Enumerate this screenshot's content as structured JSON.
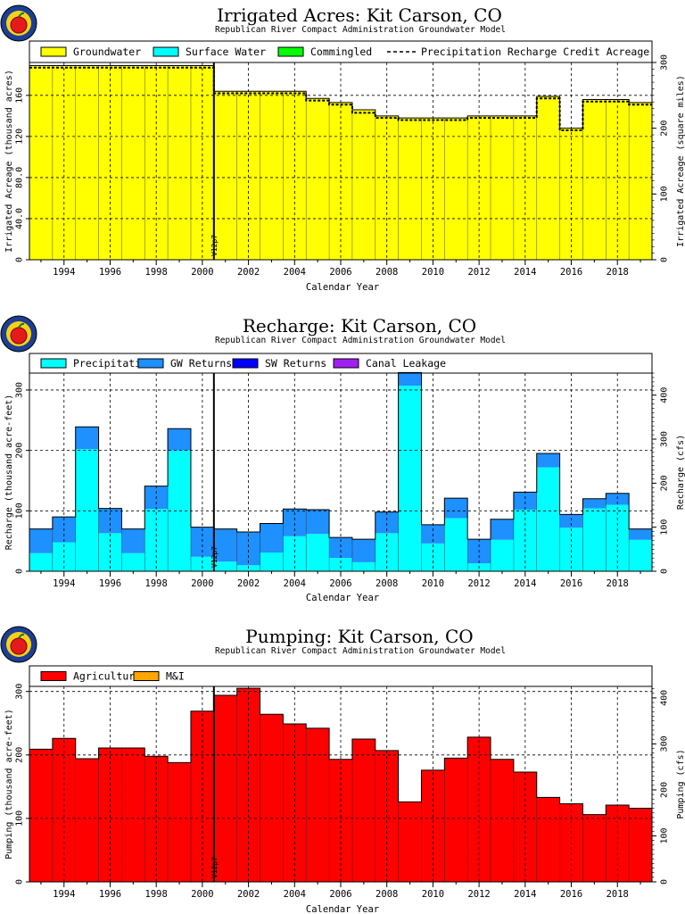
{
  "chart_data": [
    {
      "type": "bar",
      "title": "Irrigated Acres: Kit Carson, CO",
      "subtitle": "Republican River Compact Administration Groundwater Model",
      "xlabel": "Calendar Year",
      "ylabel": "Irrigated Acreage (thousand acres)",
      "y2label": "Irrigated Acreage (square miles)",
      "xlim": [
        1992.5,
        2019.5
      ],
      "ylim": [
        0,
        192
      ],
      "y2lim": [
        0,
        300
      ],
      "yticks": [
        0,
        40,
        80,
        120,
        160
      ],
      "ytick_labels": [
        "0",
        "40.0",
        "80.0",
        "120",
        "160"
      ],
      "y2ticks": [
        0,
        100,
        200,
        300
      ],
      "xticks": [
        1994,
        1996,
        1998,
        2000,
        2002,
        2004,
        2006,
        2008,
        2010,
        2012,
        2014,
        2016,
        2018
      ],
      "grid": true,
      "legend": "top",
      "marker_year": 2000.5,
      "marker_label": "V12p7",
      "x": [
        1993,
        1994,
        1995,
        1996,
        1997,
        1998,
        1999,
        2000,
        2001,
        2002,
        2003,
        2004,
        2005,
        2006,
        2007,
        2008,
        2009,
        2010,
        2011,
        2012,
        2013,
        2014,
        2015,
        2016,
        2017,
        2018,
        2019
      ],
      "series": [
        {
          "name": "Groundwater",
          "color": "#ffff00",
          "kind": "bar",
          "values": [
            189,
            189,
            189,
            189,
            189,
            189,
            189,
            189,
            164,
            164,
            164,
            164,
            157,
            153,
            146,
            140,
            138,
            138,
            138,
            140,
            140,
            140,
            159,
            128,
            156,
            156,
            153
          ]
        },
        {
          "name": "Surface Water",
          "color": "#00ffff",
          "kind": "bar",
          "values": [
            0,
            0,
            0,
            0,
            0,
            0,
            0,
            0,
            0,
            0,
            0,
            0,
            0,
            0,
            0,
            0,
            0,
            0,
            0,
            0,
            0,
            0,
            0,
            0,
            0,
            0,
            0
          ]
        },
        {
          "name": "Commingled",
          "color": "#00ff00",
          "kind": "bar",
          "values": [
            0,
            0,
            0,
            0,
            0,
            0,
            0,
            0,
            0,
            0,
            0,
            0,
            0,
            0,
            0,
            0,
            0,
            0,
            0,
            0,
            0,
            0,
            0,
            0,
            0,
            0,
            0
          ]
        },
        {
          "name": "Precipitation Recharge Credit Acreage",
          "color": "#000000",
          "kind": "dashed",
          "values": [
            187,
            187,
            187,
            187,
            187,
            187,
            187,
            187,
            162,
            162,
            162,
            162,
            155,
            151,
            143,
            138,
            136,
            136,
            136,
            138,
            138,
            138,
            157,
            126,
            154,
            154,
            151
          ]
        }
      ]
    },
    {
      "type": "bar",
      "title": "Recharge: Kit Carson, CO",
      "subtitle": "Republican River Compact Administration Groundwater Model",
      "xlabel": "Calendar Year",
      "ylabel": "Recharge (thousand acre-feet)",
      "y2label": "Recharge (cfs)",
      "xlim": [
        1992.5,
        2019.5
      ],
      "ylim": [
        0,
        328
      ],
      "y2lim": [
        0,
        450
      ],
      "yticks": [
        0,
        100,
        200,
        300
      ],
      "ytick_labels": [
        "0",
        "100",
        "200",
        "300"
      ],
      "y2ticks": [
        0,
        100,
        200,
        300,
        400
      ],
      "xticks": [
        1994,
        1996,
        1998,
        2000,
        2002,
        2004,
        2006,
        2008,
        2010,
        2012,
        2014,
        2016,
        2018
      ],
      "grid": true,
      "legend": "top",
      "marker_year": 2000.5,
      "marker_label": "V12p7",
      "x": [
        1993,
        1994,
        1995,
        1996,
        1997,
        1998,
        1999,
        2000,
        2001,
        2002,
        2003,
        2004,
        2005,
        2006,
        2007,
        2008,
        2009,
        2010,
        2011,
        2012,
        2013,
        2014,
        2015,
        2016,
        2017,
        2018,
        2019
      ],
      "series": [
        {
          "name": "Precipitation",
          "color": "#00ffff",
          "kind": "bar",
          "values": [
            30,
            48,
            202,
            63,
            30,
            103,
            200,
            24,
            16,
            10,
            31,
            58,
            62,
            22,
            15,
            63,
            307,
            46,
            88,
            13,
            52,
            102,
            172,
            72,
            104,
            110,
            52
          ]
        },
        {
          "name": "GW Returns",
          "color": "#1e90ff",
          "kind": "bar",
          "values": [
            40,
            42,
            37,
            41,
            40,
            38,
            36,
            49,
            54,
            55,
            48,
            45,
            40,
            34,
            38,
            35,
            22,
            31,
            33,
            40,
            34,
            29,
            23,
            22,
            16,
            19,
            18
          ]
        },
        {
          "name": "SW Returns",
          "color": "#0000ff",
          "kind": "bar",
          "values": [
            0,
            0,
            0,
            0,
            0,
            0,
            0,
            0,
            0,
            0,
            0,
            0,
            0,
            0,
            0,
            0,
            0,
            0,
            0,
            0,
            0,
            0,
            0,
            0,
            0,
            0,
            0
          ]
        },
        {
          "name": "Canal Leakage",
          "color": "#a020f0",
          "kind": "bar",
          "values": [
            0,
            0,
            0,
            0,
            0,
            0,
            0,
            0,
            0,
            0,
            0,
            0,
            0,
            0,
            0,
            0,
            0,
            0,
            0,
            0,
            0,
            0,
            0,
            0,
            0,
            0,
            0
          ]
        }
      ]
    },
    {
      "type": "bar",
      "title": "Pumping: Kit Carson, CO",
      "subtitle": "Republican River Compact Administration Groundwater Model",
      "xlabel": "Calendar Year",
      "ylabel": "Pumping (thousand acre-feet)",
      "y2label": "Pumping (cfs)",
      "xlim": [
        1992.5,
        2019.5
      ],
      "ylim": [
        0,
        308
      ],
      "y2lim": [
        0,
        425
      ],
      "yticks": [
        0,
        100,
        200,
        300
      ],
      "ytick_labels": [
        "0",
        "100",
        "200",
        "300"
      ],
      "y2ticks": [
        0,
        100,
        200,
        300,
        400
      ],
      "xticks": [
        1994,
        1996,
        1998,
        2000,
        2002,
        2004,
        2006,
        2008,
        2010,
        2012,
        2014,
        2016,
        2018
      ],
      "grid": true,
      "legend": "top",
      "marker_year": 2000.5,
      "marker_label": "V12p7",
      "x": [
        1993,
        1994,
        1995,
        1996,
        1997,
        1998,
        1999,
        2000,
        2001,
        2002,
        2003,
        2004,
        2005,
        2006,
        2007,
        2008,
        2009,
        2010,
        2011,
        2012,
        2013,
        2014,
        2015,
        2016,
        2017,
        2018,
        2019
      ],
      "series": [
        {
          "name": "Agricultural",
          "color": "#ff0000",
          "kind": "bar",
          "values": [
            209,
            226,
            194,
            211,
            211,
            198,
            188,
            269,
            294,
            305,
            264,
            249,
            242,
            193,
            225,
            207,
            126,
            176,
            195,
            228,
            193,
            173,
            133,
            123,
            106,
            121,
            116
          ]
        },
        {
          "name": "M&I",
          "color": "#ffa500",
          "kind": "bar",
          "values": [
            0,
            0,
            0,
            0,
            0,
            0,
            0,
            0,
            0,
            0,
            0,
            0,
            0,
            0,
            0,
            0,
            0,
            0,
            0,
            0,
            0,
            0,
            0,
            0,
            0,
            0,
            0
          ]
        }
      ]
    }
  ]
}
